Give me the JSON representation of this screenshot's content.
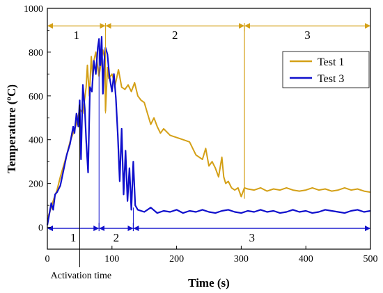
{
  "chart_data": {
    "type": "line",
    "title": "",
    "xlabel": "Time (s)",
    "ylabel": "Temperature (ºC)",
    "xlim": [
      0,
      500
    ],
    "ylim": [
      -100,
      1000
    ],
    "xticks": [
      0,
      100,
      200,
      300,
      400,
      500
    ],
    "yticks": [
      0,
      200,
      400,
      600,
      800,
      1000
    ],
    "grid": false,
    "legend_position": "top-right",
    "series": [
      {
        "name": "Test 1",
        "color": "#D4A017",
        "x": [
          0,
          5,
          10,
          15,
          20,
          25,
          30,
          35,
          40,
          45,
          50,
          55,
          60,
          62,
          65,
          68,
          70,
          72,
          75,
          78,
          80,
          83,
          86,
          89,
          90,
          93,
          95,
          100,
          105,
          110,
          115,
          120,
          125,
          130,
          135,
          140,
          145,
          150,
          155,
          160,
          165,
          170,
          175,
          180,
          190,
          200,
          210,
          220,
          230,
          240,
          245,
          250,
          255,
          260,
          265,
          270,
          273,
          276,
          280,
          285,
          290,
          295,
          300,
          305,
          310,
          320,
          330,
          340,
          350,
          360,
          370,
          380,
          390,
          400,
          410,
          420,
          430,
          440,
          450,
          460,
          470,
          480,
          490,
          500
        ],
        "y": [
          40,
          80,
          130,
          170,
          230,
          280,
          330,
          390,
          430,
          470,
          540,
          520,
          640,
          740,
          600,
          780,
          690,
          760,
          800,
          730,
          690,
          750,
          810,
          770,
          530,
          730,
          680,
          700,
          650,
          720,
          640,
          630,
          650,
          620,
          660,
          600,
          580,
          570,
          520,
          470,
          500,
          460,
          430,
          450,
          420,
          410,
          400,
          390,
          330,
          310,
          360,
          280,
          300,
          270,
          230,
          320,
          230,
          200,
          210,
          180,
          170,
          180,
          140,
          180,
          175,
          170,
          180,
          165,
          175,
          170,
          180,
          170,
          165,
          170,
          180,
          170,
          175,
          165,
          170,
          180,
          170,
          175,
          165,
          160
        ]
      },
      {
        "name": "Test 3",
        "color": "#1010CC",
        "x": [
          0,
          3,
          6,
          9,
          12,
          15,
          20,
          25,
          30,
          35,
          40,
          42,
          45,
          48,
          50,
          52,
          55,
          58,
          60,
          63,
          66,
          69,
          72,
          75,
          78,
          80,
          82,
          84,
          86,
          88,
          90,
          93,
          96,
          100,
          103,
          106,
          109,
          112,
          115,
          118,
          121,
          124,
          127,
          130,
          133,
          136,
          140,
          150,
          160,
          170,
          180,
          190,
          200,
          210,
          220,
          230,
          240,
          250,
          260,
          270,
          280,
          290,
          300,
          310,
          320,
          330,
          340,
          350,
          360,
          370,
          380,
          390,
          400,
          410,
          420,
          430,
          440,
          450,
          460,
          470,
          480,
          490,
          500
        ],
        "y": [
          10,
          60,
          110,
          80,
          150,
          160,
          190,
          260,
          330,
          380,
          460,
          430,
          520,
          460,
          580,
          310,
          650,
          540,
          400,
          250,
          640,
          620,
          760,
          700,
          820,
          860,
          740,
          870,
          610,
          760,
          820,
          790,
          690,
          620,
          700,
          590,
          420,
          210,
          450,
          150,
          350,
          120,
          270,
          80,
          300,
          100,
          80,
          70,
          90,
          65,
          75,
          70,
          80,
          65,
          75,
          70,
          80,
          70,
          65,
          75,
          80,
          70,
          65,
          75,
          70,
          80,
          70,
          75,
          65,
          70,
          80,
          70,
          75,
          65,
          70,
          80,
          75,
          70,
          65,
          75,
          80,
          70,
          75
        ]
      }
    ],
    "annotations": {
      "top_phase_labels": [
        "1",
        "2",
        "3"
      ],
      "bottom_phase_labels": [
        "1",
        "2",
        "3"
      ],
      "top_phase_boundaries": [
        0,
        90,
        305,
        500
      ],
      "bottom_phase_boundaries": [
        0,
        80,
        133,
        500
      ],
      "top_arrow_level": 920,
      "bottom_arrow_level": -5,
      "activation_time": 50,
      "activation_label": "Activation time"
    }
  }
}
